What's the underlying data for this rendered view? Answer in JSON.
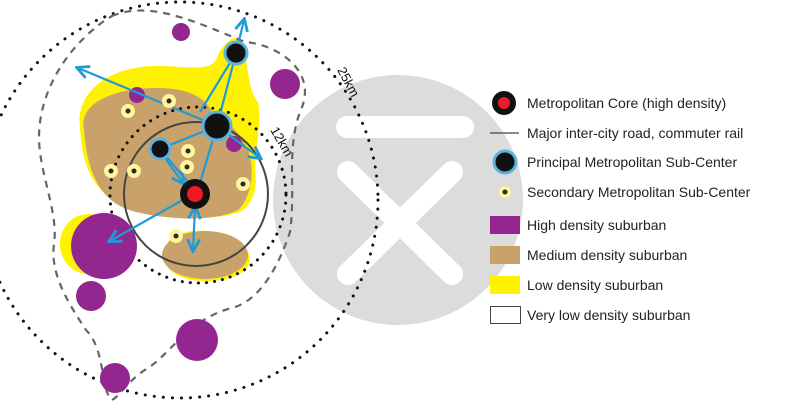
{
  "colors": {
    "core_fill": "#ed1c24",
    "core_ring": "#111111",
    "sub_center_fill": "#111111",
    "sub_center_ring": "#5bb2dc",
    "secondary_fill": "#2a2a2a",
    "secondary_ring": "#fff59a",
    "high_density": "#93278f",
    "medium_density": "#c9a26b",
    "low_density": "#fff200",
    "arrow": "#1e9bd7",
    "watermark": "#dcdcdc"
  },
  "rings": {
    "outer_label": "25km",
    "inner_label": "12km"
  },
  "legend": {
    "items": [
      {
        "key": "metro-core",
        "label": "Metropolitan Core (high density)"
      },
      {
        "key": "road-rail",
        "label": "Major inter-city road, commuter rail"
      },
      {
        "key": "principal-sub-center",
        "label": "Principal Metropolitan Sub-Center"
      },
      {
        "key": "secondary-sub-center",
        "label": "Secondary Metropolitan Sub-Center"
      },
      {
        "key": "high-density",
        "label": "High density suburban"
      },
      {
        "key": "medium-density",
        "label": "Medium density suburban"
      },
      {
        "key": "low-density",
        "label": "Low density suburban"
      },
      {
        "key": "very-low-density",
        "label": "Very low density suburban"
      }
    ]
  }
}
